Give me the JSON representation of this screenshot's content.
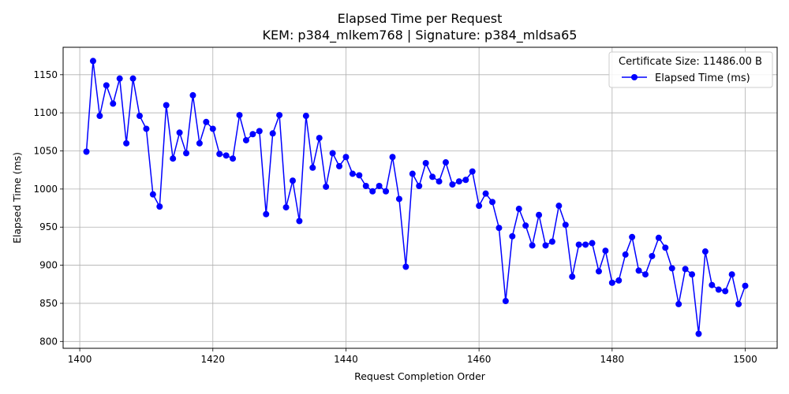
{
  "chart_data": {
    "type": "line",
    "title": "Elapsed Time per Request",
    "subtitle": "KEM: p384_mlkem768 | Signature: p384_mldsa65",
    "xlabel": "Request Completion Order",
    "ylabel": "Elapsed Time (ms)",
    "xlim": [
      1397.5,
      1504.8
    ],
    "ylim": [
      791,
      1186
    ],
    "xticks": [
      1400,
      1420,
      1440,
      1460,
      1480,
      1500
    ],
    "yticks": [
      800,
      850,
      900,
      950,
      1000,
      1050,
      1100,
      1150
    ],
    "grid": true,
    "legend": {
      "title": "Certificate Size: 11486.00 B",
      "placement": "top-right"
    },
    "series": [
      {
        "name": "Elapsed Time (ms)",
        "color": "#0000ff",
        "marker": "circle",
        "x": [
          1401,
          1402,
          1403,
          1404,
          1405,
          1406,
          1407,
          1408,
          1409,
          1410,
          1411,
          1412,
          1413,
          1414,
          1415,
          1416,
          1417,
          1418,
          1419,
          1420,
          1421,
          1422,
          1423,
          1424,
          1425,
          1426,
          1427,
          1428,
          1429,
          1430,
          1431,
          1432,
          1433,
          1434,
          1435,
          1436,
          1437,
          1438,
          1439,
          1440,
          1441,
          1442,
          1443,
          1444,
          1445,
          1446,
          1447,
          1448,
          1449,
          1450,
          1451,
          1452,
          1453,
          1454,
          1455,
          1456,
          1457,
          1458,
          1459,
          1460,
          1461,
          1462,
          1463,
          1464,
          1465,
          1466,
          1467,
          1468,
          1469,
          1470,
          1471,
          1472,
          1473,
          1474,
          1475,
          1476,
          1477,
          1478,
          1479,
          1480,
          1481,
          1482,
          1483,
          1484,
          1485,
          1486,
          1487,
          1488,
          1489,
          1490,
          1491,
          1492,
          1493,
          1494,
          1495,
          1496,
          1497,
          1498,
          1499,
          1500
        ],
        "y": [
          1049,
          1168,
          1096,
          1136,
          1112,
          1145,
          1060,
          1145,
          1096,
          1079,
          993,
          977,
          1110,
          1040,
          1074,
          1047,
          1123,
          1060,
          1088,
          1079,
          1046,
          1044,
          1040,
          1097,
          1064,
          1072,
          1076,
          967,
          1073,
          1097,
          976,
          1011,
          958,
          1096,
          1028,
          1067,
          1003,
          1047,
          1030,
          1042,
          1020,
          1018,
          1004,
          997,
          1004,
          997,
          1042,
          987,
          898,
          1020,
          1004,
          1034,
          1016,
          1010,
          1035,
          1006,
          1010,
          1012,
          1023,
          978,
          994,
          983,
          949,
          853,
          938,
          974,
          952,
          926,
          966,
          926,
          931,
          978,
          953,
          885,
          927,
          927,
          929,
          892,
          919,
          877,
          880,
          914,
          937,
          893,
          888,
          912,
          936,
          923,
          896,
          849,
          895,
          888,
          810,
          918,
          874,
          868,
          866,
          888,
          849,
          873
        ]
      }
    ]
  }
}
